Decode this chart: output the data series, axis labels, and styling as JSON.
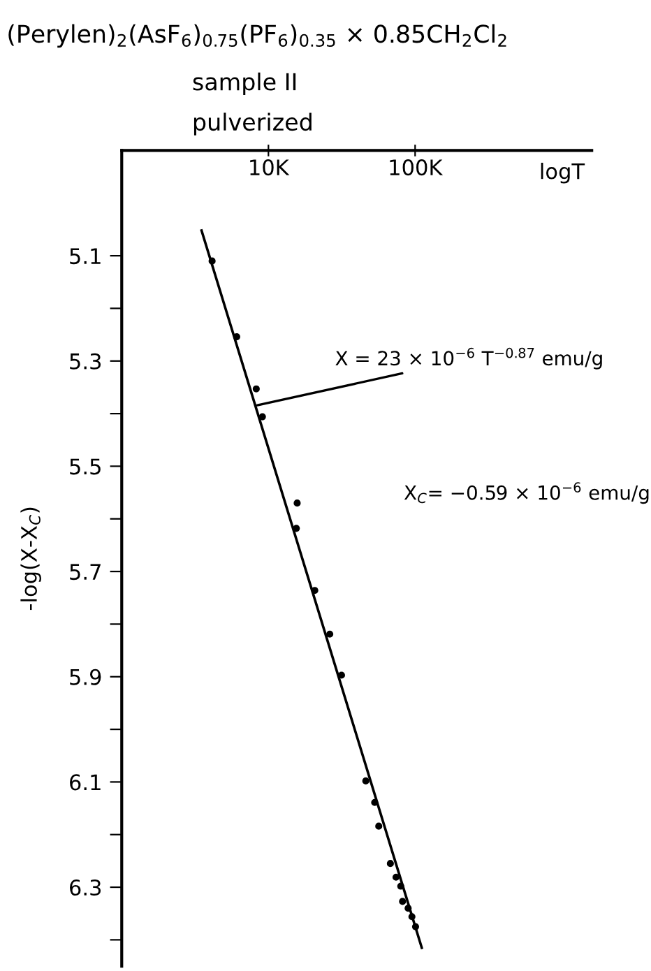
{
  "chart_data": {
    "type": "scatter",
    "title": "(Perylen)$_{2}$(AsF$_{6}$)$_{0.75}$(PF$_{6}$)$_{0.35}$ × 0.85CH$_{2}$Cl$_{2}$",
    "subtitle": "sample II\npulverized",
    "xlabel": "logT",
    "ylabel": "-log(X-X$_{C}$)",
    "log": "x",
    "xlim": [
      1,
      1600
    ],
    "xticks": [
      {
        "value": 10,
        "label": "10K"
      },
      {
        "value": 100,
        "label": "100K"
      }
    ],
    "ylim": [
      6.45,
      4.9
    ],
    "yticks": [
      5.1,
      {
        "value": 5.2,
        "label": null
      },
      5.3,
      {
        "value": 5.4,
        "label": null
      },
      5.5,
      {
        "value": 5.6,
        "label": null
      },
      5.7,
      {
        "value": 5.8,
        "label": null
      },
      5.9,
      {
        "value": 6.0,
        "label": null
      },
      6.1,
      {
        "value": 6.2,
        "label": null
      },
      6.3,
      {
        "value": 6.4,
        "label": null
      }
    ],
    "grid": false,
    "series": [
      {
        "color": "#000000",
        "marker": "circle",
        "x": [
          4.13,
          6.08,
          8.26,
          9.1,
          15.7,
          15.5,
          20.7,
          26.2,
          31.5,
          46.1,
          53,
          56.5,
          67.8,
          74.1,
          79.8,
          82.1,
          89.6,
          95.1,
          100.7
        ],
        "values": [
          5.11,
          5.254,
          5.353,
          5.406,
          5.57,
          5.618,
          5.736,
          5.819,
          5.897,
          6.098,
          6.139,
          6.184,
          6.255,
          6.281,
          6.298,
          6.327,
          6.34,
          6.356,
          6.375
        ]
      },
      {
        "type": "line",
        "color": "#000000",
        "line_style": "solid",
        "x": [
          3.5,
          111
        ],
        "values": [
          5.052,
          6.415
        ]
      }
    ],
    "annotations": [
      {
        "text": "X = 23 × 10$^{−6}$ T$^{−0.87}$ emu/g",
        "x": 8.4,
        "y": 5.384
      },
      "X$_{C}$= −0.59 × 10$^{−6}$ emu/g"
    ]
  }
}
